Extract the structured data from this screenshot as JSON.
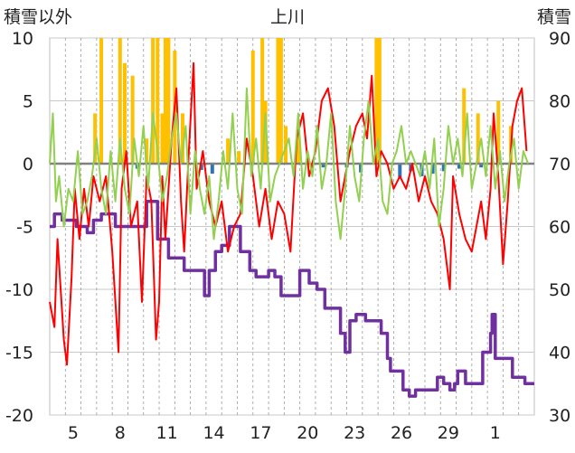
{
  "chart_data": {
    "type": "line",
    "title": "上川",
    "y_left_label": "積雪以外",
    "y_right_label": "積雪",
    "y_left_range": [
      -20,
      10
    ],
    "y_right_range": [
      30,
      90
    ],
    "y_left_ticks": [
      "-20",
      "-15",
      "-10",
      "-5",
      "0",
      "5",
      "10"
    ],
    "y_right_ticks": [
      "30",
      "40",
      "50",
      "60",
      "70",
      "80",
      "90"
    ],
    "x_range": [
      0,
      31
    ],
    "x_ticks": [
      {
        "x": 1.5,
        "label": "5"
      },
      {
        "x": 4.5,
        "label": "8"
      },
      {
        "x": 7.5,
        "label": "11"
      },
      {
        "x": 10.5,
        "label": "14"
      },
      {
        "x": 13.5,
        "label": "17"
      },
      {
        "x": 16.5,
        "label": "20"
      },
      {
        "x": 19.5,
        "label": "23"
      },
      {
        "x": 22.5,
        "label": "26"
      },
      {
        "x": 25.5,
        "label": "29"
      },
      {
        "x": 28.5,
        "label": "1"
      }
    ],
    "grid": true,
    "colors": {
      "temperature": "#ff0000",
      "wind": "#92d050",
      "precipitation": "#ffc000",
      "negative_bar": "#2e75b6",
      "snow_depth": "#7030a0",
      "zero_line": "#808080"
    },
    "series": [
      {
        "axis": "right",
        "color": "#7030a0",
        "style": "step",
        "values": [
          [
            0,
            60
          ],
          [
            0.3,
            62
          ],
          [
            0.8,
            61
          ],
          [
            1.7,
            60
          ],
          [
            2.4,
            59
          ],
          [
            2.8,
            61
          ],
          [
            3.3,
            62
          ],
          [
            4.2,
            60
          ],
          [
            5.5,
            60
          ],
          [
            6.2,
            64
          ],
          [
            6.9,
            58
          ],
          [
            7.4,
            58
          ],
          [
            7.6,
            55
          ],
          [
            8.3,
            55
          ],
          [
            8.6,
            53
          ],
          [
            9.5,
            53
          ],
          [
            9.9,
            49
          ],
          [
            10.2,
            53
          ],
          [
            10.6,
            56
          ],
          [
            11.0,
            57
          ],
          [
            11.5,
            60
          ],
          [
            12.2,
            56
          ],
          [
            12.8,
            53
          ],
          [
            13.2,
            52
          ],
          [
            14.0,
            53
          ],
          [
            14.4,
            52
          ],
          [
            14.8,
            49
          ],
          [
            15.8,
            49
          ],
          [
            16.0,
            53
          ],
          [
            16.6,
            51
          ],
          [
            17.1,
            50
          ],
          [
            17.6,
            47
          ],
          [
            18.6,
            43
          ],
          [
            18.9,
            40
          ],
          [
            19.2,
            45
          ],
          [
            19.6,
            46
          ],
          [
            20.2,
            45
          ],
          [
            20.6,
            45
          ],
          [
            21.2,
            43
          ],
          [
            21.6,
            39
          ],
          [
            21.8,
            37
          ],
          [
            22.3,
            37
          ],
          [
            22.6,
            34
          ],
          [
            23.0,
            33
          ],
          [
            23.4,
            34
          ],
          [
            24.0,
            34
          ],
          [
            24.5,
            34
          ],
          [
            24.8,
            36
          ],
          [
            25.2,
            35
          ],
          [
            25.6,
            34
          ],
          [
            25.9,
            35
          ],
          [
            26.1,
            37
          ],
          [
            26.6,
            35
          ],
          [
            27.4,
            35
          ],
          [
            27.7,
            40
          ],
          [
            28.2,
            43
          ],
          [
            28.3,
            46
          ],
          [
            28.5,
            39
          ],
          [
            29.2,
            39
          ],
          [
            29.6,
            36
          ],
          [
            30.0,
            36
          ],
          [
            30.4,
            35
          ],
          [
            31,
            35
          ]
        ]
      },
      {
        "axis": "left",
        "color": "#ff0000",
        "style": "line",
        "values": [
          [
            0,
            -11
          ],
          [
            0.3,
            -13
          ],
          [
            0.5,
            -6
          ],
          [
            0.9,
            -14
          ],
          [
            1.1,
            -16
          ],
          [
            1.4,
            -9
          ],
          [
            1.6,
            -2
          ],
          [
            1.9,
            -6
          ],
          [
            2.2,
            -2
          ],
          [
            2.5,
            -5
          ],
          [
            2.8,
            -1
          ],
          [
            3.2,
            -3
          ],
          [
            3.6,
            -1
          ],
          [
            4.0,
            -7
          ],
          [
            4.4,
            -15
          ],
          [
            4.6,
            -2
          ],
          [
            4.9,
            1
          ],
          [
            5.2,
            -5
          ],
          [
            5.6,
            -3
          ],
          [
            5.9,
            -11
          ],
          [
            6.2,
            -1
          ],
          [
            6.5,
            -3
          ],
          [
            6.8,
            -14
          ],
          [
            7.0,
            -11
          ],
          [
            7.2,
            -1
          ],
          [
            7.4,
            -6
          ],
          [
            7.8,
            2
          ],
          [
            8.1,
            6
          ],
          [
            8.4,
            -3
          ],
          [
            8.6,
            -7
          ],
          [
            8.9,
            1
          ],
          [
            9.2,
            8
          ],
          [
            9.4,
            -2
          ],
          [
            9.8,
            1
          ],
          [
            10.2,
            -3
          ],
          [
            10.6,
            -5
          ],
          [
            11.0,
            -3
          ],
          [
            11.4,
            -7
          ],
          [
            11.8,
            -5
          ],
          [
            12.2,
            -4
          ],
          [
            12.6,
            2
          ],
          [
            13.0,
            -1
          ],
          [
            13.4,
            -5
          ],
          [
            13.8,
            -2
          ],
          [
            14.2,
            -6
          ],
          [
            14.6,
            -3
          ],
          [
            15.0,
            -4
          ],
          [
            15.4,
            -7
          ],
          [
            15.8,
            2
          ],
          [
            16.2,
            4
          ],
          [
            16.6,
            -1
          ],
          [
            17.0,
            1
          ],
          [
            17.4,
            5
          ],
          [
            17.8,
            6
          ],
          [
            18.2,
            3
          ],
          [
            18.6,
            -3
          ],
          [
            18.9,
            -1
          ],
          [
            19.2,
            1
          ],
          [
            19.6,
            3
          ],
          [
            20.0,
            4
          ],
          [
            20.3,
            2
          ],
          [
            20.6,
            7
          ],
          [
            20.9,
            -1
          ],
          [
            21.2,
            1
          ],
          [
            21.6,
            0
          ],
          [
            22.0,
            -2
          ],
          [
            22.4,
            -1
          ],
          [
            22.8,
            -2
          ],
          [
            23.2,
            0
          ],
          [
            23.6,
            -3
          ],
          [
            24.0,
            -1
          ],
          [
            24.4,
            -3
          ],
          [
            24.8,
            -4
          ],
          [
            25.2,
            -6
          ],
          [
            25.6,
            -10
          ],
          [
            25.8,
            -1
          ],
          [
            26.2,
            -4
          ],
          [
            26.6,
            -6
          ],
          [
            27.0,
            -7
          ],
          [
            27.3,
            -5
          ],
          [
            27.6,
            -3
          ],
          [
            27.9,
            -6
          ],
          [
            28.2,
            -2
          ],
          [
            28.4,
            4
          ],
          [
            28.7,
            -1
          ],
          [
            29.0,
            -8
          ],
          [
            29.3,
            -3
          ],
          [
            29.6,
            3
          ],
          [
            29.9,
            5
          ],
          [
            30.2,
            6
          ],
          [
            30.5,
            1
          ]
        ]
      },
      {
        "axis": "left",
        "color": "#92d050",
        "style": "line",
        "values": [
          [
            0,
            0
          ],
          [
            0.2,
            4
          ],
          [
            0.4,
            -3
          ],
          [
            0.6,
            -1
          ],
          [
            0.9,
            -5
          ],
          [
            1.2,
            -2
          ],
          [
            1.5,
            -3
          ],
          [
            1.8,
            1
          ],
          [
            2.1,
            -4
          ],
          [
            2.4,
            -3
          ],
          [
            2.7,
            -1
          ],
          [
            3.0,
            2
          ],
          [
            3.3,
            -2
          ],
          [
            3.6,
            -4
          ],
          [
            3.9,
            1
          ],
          [
            4.2,
            -3
          ],
          [
            4.5,
            2
          ],
          [
            4.8,
            -2
          ],
          [
            5.1,
            -4
          ],
          [
            5.4,
            2
          ],
          [
            5.7,
            -1
          ],
          [
            6.0,
            3
          ],
          [
            6.3,
            -2
          ],
          [
            6.6,
            4
          ],
          [
            6.9,
            1
          ],
          [
            7.2,
            -3
          ],
          [
            7.5,
            -1
          ],
          [
            7.8,
            2
          ],
          [
            8.1,
            4
          ],
          [
            8.4,
            0
          ],
          [
            8.7,
            3
          ],
          [
            9.0,
            -4
          ],
          [
            9.3,
            1
          ],
          [
            9.6,
            -2
          ],
          [
            9.9,
            -4
          ],
          [
            10.2,
            -1
          ],
          [
            10.5,
            -6
          ],
          [
            10.8,
            -3
          ],
          [
            11.1,
            1
          ],
          [
            11.4,
            -2
          ],
          [
            11.7,
            4
          ],
          [
            12.0,
            -2
          ],
          [
            12.3,
            -4
          ],
          [
            12.6,
            6
          ],
          [
            12.9,
            -1
          ],
          [
            13.2,
            2
          ],
          [
            13.5,
            -2
          ],
          [
            13.8,
            4
          ],
          [
            14.1,
            -3
          ],
          [
            14.4,
            -1
          ],
          [
            14.7,
            0
          ],
          [
            15.0,
            1
          ],
          [
            15.3,
            2
          ],
          [
            15.6,
            -1
          ],
          [
            15.9,
            4
          ],
          [
            16.2,
            -2
          ],
          [
            16.5,
            1
          ],
          [
            16.8,
            -1
          ],
          [
            17.1,
            3
          ],
          [
            17.4,
            -2
          ],
          [
            17.7,
            0
          ],
          [
            18.0,
            4
          ],
          [
            18.3,
            -3
          ],
          [
            18.6,
            -6
          ],
          [
            18.9,
            -2
          ],
          [
            19.2,
            3
          ],
          [
            19.5,
            -1
          ],
          [
            19.8,
            -3
          ],
          [
            20.1,
            2
          ],
          [
            20.4,
            5
          ],
          [
            20.7,
            0
          ],
          [
            21.0,
            2
          ],
          [
            21.3,
            -3
          ],
          [
            21.6,
            -4
          ],
          [
            21.9,
            0
          ],
          [
            22.2,
            1
          ],
          [
            22.5,
            3
          ],
          [
            22.8,
            0
          ],
          [
            23.1,
            1
          ],
          [
            23.4,
            0
          ],
          [
            23.7,
            -1
          ],
          [
            24.0,
            1
          ],
          [
            24.3,
            -2
          ],
          [
            24.6,
            2
          ],
          [
            24.9,
            -5
          ],
          [
            25.2,
            -2
          ],
          [
            25.5,
            3
          ],
          [
            25.8,
            0
          ],
          [
            26.1,
            2
          ],
          [
            26.4,
            -1
          ],
          [
            26.7,
            4
          ],
          [
            27.0,
            -2
          ],
          [
            27.3,
            0
          ],
          [
            27.6,
            2
          ],
          [
            27.9,
            -1
          ],
          [
            28.2,
            3
          ],
          [
            28.5,
            -2
          ],
          [
            28.8,
            1
          ],
          [
            29.1,
            -3
          ],
          [
            29.4,
            0
          ],
          [
            29.7,
            2
          ],
          [
            30.0,
            -2
          ],
          [
            30.3,
            1
          ],
          [
            30.6,
            0
          ]
        ]
      },
      {
        "axis": "left",
        "color": "#ffc000",
        "style": "bar",
        "values": [
          [
            2.9,
            4
          ],
          [
            3.3,
            10
          ],
          [
            4.5,
            10
          ],
          [
            4.8,
            8
          ],
          [
            5.3,
            7
          ],
          [
            6.2,
            2
          ],
          [
            6.6,
            10
          ],
          [
            6.9,
            10
          ],
          [
            7.2,
            4
          ],
          [
            7.4,
            10
          ],
          [
            7.6,
            10
          ],
          [
            8.0,
            9
          ],
          [
            8.5,
            4
          ],
          [
            11.4,
            2
          ],
          [
            12.1,
            1
          ],
          [
            13.0,
            9
          ],
          [
            13.6,
            10
          ],
          [
            13.8,
            5
          ],
          [
            14.6,
            10
          ],
          [
            14.8,
            10
          ],
          [
            15.1,
            3
          ],
          [
            15.9,
            3
          ],
          [
            20.9,
            10
          ],
          [
            21.1,
            10
          ],
          [
            26.5,
            6
          ],
          [
            27.4,
            4
          ],
          [
            28.7,
            5
          ],
          [
            29.5,
            3
          ]
        ]
      },
      {
        "axis": "left",
        "color": "#2e75b6",
        "style": "bar",
        "values": [
          [
            5.6,
            -0.4
          ],
          [
            9.7,
            -0.5
          ],
          [
            10.4,
            -0.8
          ],
          [
            17.5,
            -0.3
          ],
          [
            19.0,
            -0.3
          ],
          [
            19.9,
            -0.7
          ],
          [
            22.4,
            -1.2
          ],
          [
            23.1,
            -0.6
          ],
          [
            23.8,
            -1.0
          ],
          [
            24.5,
            -0.8
          ],
          [
            25.2,
            -0.6
          ],
          [
            26.2,
            -0.4
          ],
          [
            27.6,
            -0.3
          ]
        ]
      }
    ]
  }
}
